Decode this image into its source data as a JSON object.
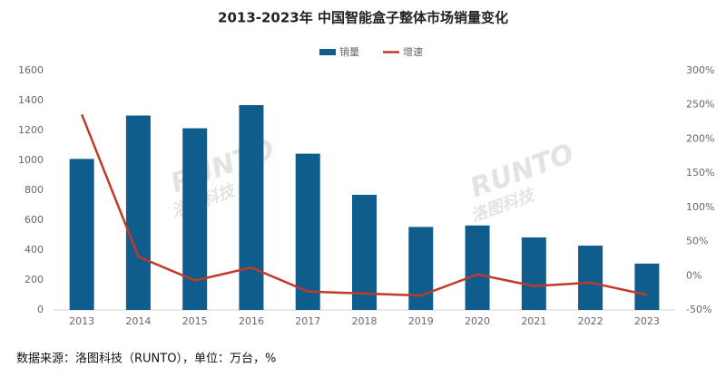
{
  "chart_data": {
    "type": "bar_line",
    "title": "2013-2023年 中国智能盒子整体市场销量变化",
    "categories": [
      "2013",
      "2014",
      "2015",
      "2016",
      "2017",
      "2018",
      "2019",
      "2020",
      "2021",
      "2022",
      "2023"
    ],
    "series": [
      {
        "name": "销量",
        "type": "bar",
        "color": "#0f5d8c",
        "values": [
          1010,
          1300,
          1215,
          1370,
          1045,
          770,
          555,
          565,
          485,
          430,
          310
        ]
      },
      {
        "name": "增速",
        "type": "line",
        "axis": "y2",
        "color": "#c0392b",
        "values": [
          236,
          28,
          -7,
          12,
          -23,
          -26,
          -29,
          2,
          -15,
          -10,
          -28
        ]
      }
    ],
    "ylim": [
      0,
      1600
    ],
    "yticks": [
      0,
      200,
      400,
      600,
      800,
      1000,
      1200,
      1400,
      1600
    ],
    "y2lim": [
      -50,
      300
    ],
    "y2ticks": [
      {
        "value": -50,
        "label": "-50%"
      },
      {
        "value": 0,
        "label": "0%"
      },
      {
        "value": 50,
        "label": "50%"
      },
      {
        "value": 100,
        "label": "100%"
      },
      {
        "value": 150,
        "label": "150%"
      },
      {
        "value": 200,
        "label": "200%"
      },
      {
        "value": 250,
        "label": "250%"
      },
      {
        "value": 300,
        "label": "300%"
      }
    ],
    "legend": "top",
    "watermark": [
      "RUNTO",
      "洛图科技"
    ],
    "source": "数据来源：洛图科技（RUNTO），单位：万台，%"
  }
}
